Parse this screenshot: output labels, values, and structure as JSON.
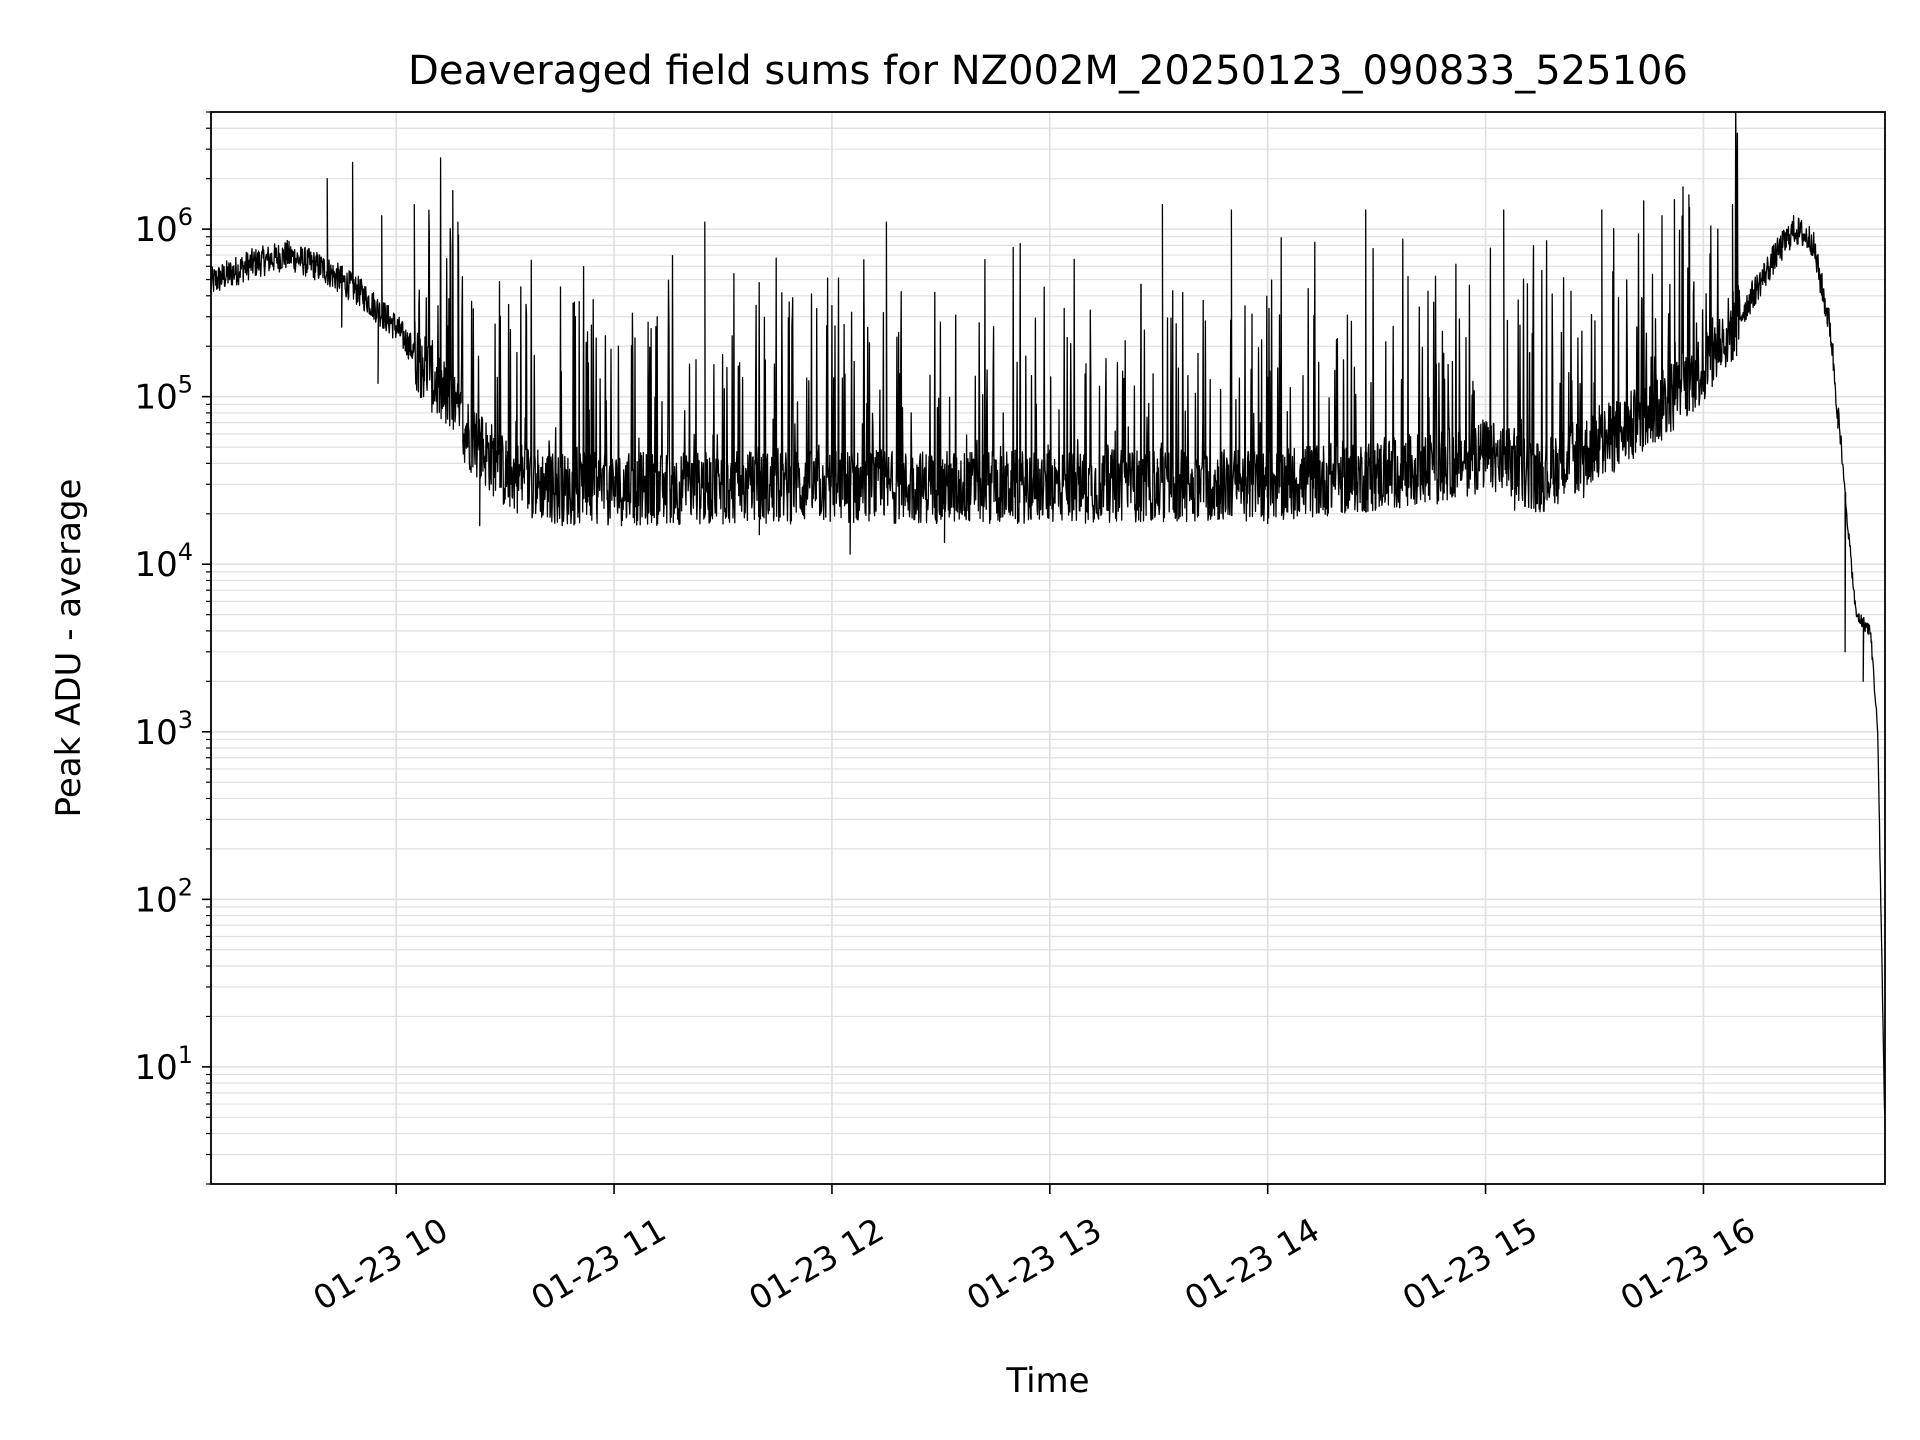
{
  "chart_data": {
    "type": "line",
    "title": "Deaveraged field sums for NZ002M_20250123_090833_525106",
    "xlabel": "Time",
    "ylabel": "Peak ADU - average",
    "yscale": "log",
    "ylim": [
      2,
      5000000
    ],
    "xlim": [
      "2025-01-23 09:09",
      "2025-01-23 16:50"
    ],
    "grid": true,
    "line_color": "#000000",
    "grid_color": "#e0e0e0",
    "x_ticks": [
      {
        "label": "01-23 10",
        "x": "2025-01-23 10:00"
      },
      {
        "label": "01-23 11",
        "x": "2025-01-23 11:00"
      },
      {
        "label": "01-23 12",
        "x": "2025-01-23 12:00"
      },
      {
        "label": "01-23 13",
        "x": "2025-01-23 13:00"
      },
      {
        "label": "01-23 14",
        "x": "2025-01-23 14:00"
      },
      {
        "label": "01-23 15",
        "x": "2025-01-23 15:00"
      },
      {
        "label": "01-23 16",
        "x": "2025-01-23 16:00"
      }
    ],
    "y_ticks": [
      {
        "base": "10",
        "exp": "1",
        "value": 10
      },
      {
        "base": "10",
        "exp": "2",
        "value": 100
      },
      {
        "base": "10",
        "exp": "3",
        "value": 1000
      },
      {
        "base": "10",
        "exp": "4",
        "value": 10000
      },
      {
        "base": "10",
        "exp": "5",
        "value": 100000
      },
      {
        "base": "10",
        "exp": "6",
        "value": 1000000
      }
    ],
    "series": [
      {
        "points": [
          [
            "2025-01-23 09:09",
            480000
          ],
          [
            "2025-01-23 09:20",
            620000
          ],
          [
            "2025-01-23 09:30",
            700000
          ],
          [
            "2025-01-23 09:40",
            580000
          ],
          [
            "2025-01-23 09:50",
            420000
          ],
          [
            "2025-01-23 10:00",
            260000
          ],
          [
            "2025-01-23 10:10",
            130000
          ],
          [
            "2025-01-23 10:20",
            60000
          ],
          [
            "2025-01-23 10:30",
            35000
          ],
          [
            "2025-01-23 10:45",
            28000
          ],
          [
            "2025-01-23 11:00",
            28000
          ],
          [
            "2025-01-23 12:00",
            29000
          ],
          [
            "2025-01-23 13:00",
            29000
          ],
          [
            "2025-01-23 14:00",
            30000
          ],
          [
            "2025-01-23 14:30",
            34000
          ],
          [
            "2025-01-23 14:45",
            37000
          ],
          [
            "2025-01-23 15:00",
            45000
          ],
          [
            "2025-01-23 15:15",
            33000
          ],
          [
            "2025-01-23 15:30",
            50000
          ],
          [
            "2025-01-23 15:45",
            75000
          ],
          [
            "2025-01-23 16:00",
            150000
          ],
          [
            "2025-01-23 16:10",
            300000
          ],
          [
            "2025-01-23 16:20",
            700000
          ],
          [
            "2025-01-23 16:25",
            1000000
          ],
          [
            "2025-01-23 16:30",
            850000
          ],
          [
            "2025-01-23 16:35",
            250000
          ],
          [
            "2025-01-23 16:40",
            15000
          ],
          [
            "2025-01-23 16:42",
            5000
          ],
          [
            "2025-01-23 16:46",
            4000
          ],
          [
            "2025-01-23 16:48",
            1000
          ],
          [
            "2025-01-23 16:50",
            4
          ]
        ],
        "spikes": [
          [
            "2025-01-23 09:41",
            2000000
          ],
          [
            "2025-01-23 09:48",
            2500000
          ],
          [
            "2025-01-23 09:56",
            1200000
          ],
          [
            "2025-01-23 10:05",
            1400000
          ],
          [
            "2025-01-23 10:17",
            1100000
          ],
          [
            "2025-01-23 11:25",
            1100000
          ],
          [
            "2025-01-23 12:15",
            1100000
          ],
          [
            "2025-01-23 13:31",
            1400000
          ],
          [
            "2025-01-23 13:50",
            1300000
          ],
          [
            "2025-01-23 14:27",
            1300000
          ],
          [
            "2025-01-23 15:05",
            1300000
          ],
          [
            "2025-01-23 15:32",
            1300000
          ],
          [
            "2025-01-23 15:52",
            1500000
          ],
          [
            "2025-01-23 15:56",
            1600000
          ],
          [
            "2025-01-23 16:08",
            1400000
          ],
          [
            "2025-01-23 16:37",
            65000
          ]
        ],
        "dips": [
          [
            "2025-01-23 09:45",
            260000
          ],
          [
            "2025-01-23 09:55",
            120000
          ],
          [
            "2025-01-23 10:23",
            17000
          ],
          [
            "2025-01-23 11:40",
            15000
          ],
          [
            "2025-01-23 12:05",
            11500
          ],
          [
            "2025-01-23 12:31",
            13500
          ],
          [
            "2025-01-23 13:25",
            18000
          ],
          [
            "2025-01-23 14:00",
            17500
          ],
          [
            "2025-01-23 15:08",
            21000
          ],
          [
            "2025-01-23 15:27",
            25000
          ],
          [
            "2025-01-23 16:39",
            3000
          ],
          [
            "2025-01-23 16:44",
            2000
          ]
        ]
      }
    ]
  }
}
